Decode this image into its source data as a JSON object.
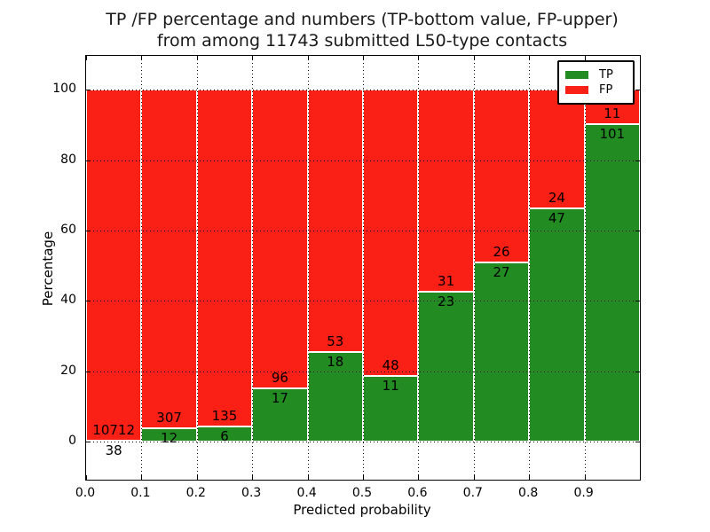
{
  "chart_data": {
    "type": "bar",
    "subtype": "stacked-percentage",
    "title": "TP /FP percentage and numbers (TP-bottom value, FP-upper)\nfrom among 11743 submitted L50-type contacts",
    "title_line1": "TP /FP percentage and numbers (TP-bottom value, FP-upper)",
    "title_line2": "from among 11743 submitted L50-type contacts",
    "xlabel": "Predicted probability",
    "ylabel": "Percentage",
    "xlim": [
      0.0,
      1.0
    ],
    "ylim": [
      -10.8,
      109.6
    ],
    "xticks": [
      0.0,
      0.1,
      0.2,
      0.3,
      0.4,
      0.5,
      0.6,
      0.7,
      0.8,
      0.9
    ],
    "xtick_labels": [
      "0.0",
      "0.1",
      "0.2",
      "0.3",
      "0.4",
      "0.5",
      "0.6",
      "0.7",
      "0.8",
      "0.9"
    ],
    "yticks": [
      0,
      20,
      40,
      60,
      80,
      100
    ],
    "ytick_labels": [
      "0",
      "20",
      "40",
      "60",
      "80",
      "100"
    ],
    "grid": true,
    "grid_style": "dotted",
    "total_contacts": 11743,
    "categories": [
      "0.0-0.1",
      "0.1-0.2",
      "0.2-0.3",
      "0.3-0.4",
      "0.4-0.5",
      "0.5-0.6",
      "0.6-0.7",
      "0.7-0.8",
      "0.8-0.9",
      "0.9-1.0"
    ],
    "series": [
      {
        "name": "TP",
        "color": "#228b22",
        "counts": [
          38,
          12,
          6,
          17,
          18,
          11,
          23,
          27,
          47,
          101
        ]
      },
      {
        "name": "FP",
        "color": "#fb2015",
        "counts": [
          10712,
          307,
          135,
          96,
          53,
          48,
          31,
          26,
          24,
          11
        ]
      }
    ],
    "bars": [
      {
        "range": [
          0.0,
          0.1
        ],
        "tp": 38,
        "fp": 10712
      },
      {
        "range": [
          0.1,
          0.2
        ],
        "tp": 12,
        "fp": 307
      },
      {
        "range": [
          0.2,
          0.3
        ],
        "tp": 6,
        "fp": 135
      },
      {
        "range": [
          0.3,
          0.4
        ],
        "tp": 17,
        "fp": 96
      },
      {
        "range": [
          0.4,
          0.5
        ],
        "tp": 18,
        "fp": 53
      },
      {
        "range": [
          0.5,
          0.6
        ],
        "tp": 11,
        "fp": 48
      },
      {
        "range": [
          0.6,
          0.7
        ],
        "tp": 23,
        "fp": 31
      },
      {
        "range": [
          0.7,
          0.8
        ],
        "tp": 27,
        "fp": 26
      },
      {
        "range": [
          0.8,
          0.9
        ],
        "tp": 47,
        "fp": 24
      },
      {
        "range": [
          0.9,
          1.0
        ],
        "tp": 101,
        "fp": 11
      }
    ],
    "legend": {
      "position": "upper right",
      "entries": [
        {
          "label": "TP",
          "color": "#228b22"
        },
        {
          "label": "FP",
          "color": "#fb2015"
        }
      ]
    }
  }
}
